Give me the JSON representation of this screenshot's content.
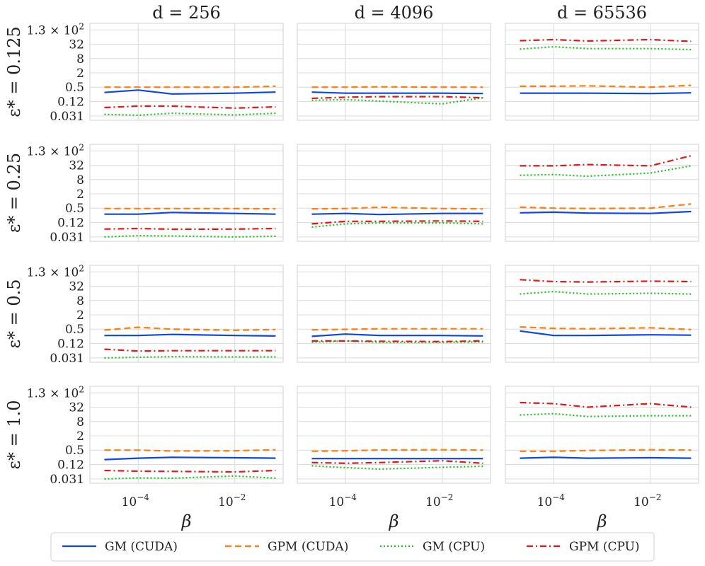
{
  "chart_data": {
    "type": "line",
    "layout": "grid 4 rows x 3 columns",
    "xscale": "log",
    "yscale": "log",
    "xlabel": "β",
    "xlim": [
      1e-05,
      0.1
    ],
    "ylim": [
      0.025,
      160
    ],
    "x": [
      2e-05,
      0.0001,
      0.0005,
      0.01,
      0.07
    ],
    "xticks": [
      {
        "value": 0.0001,
        "base": "10",
        "exp": "−4"
      },
      {
        "value": 0.01,
        "base": "10",
        "exp": "−2"
      }
    ],
    "yticks": [
      {
        "value": 128,
        "label": "1.3 × 10",
        "exp": "2"
      },
      {
        "value": 32,
        "label": "32"
      },
      {
        "value": 8,
        "label": "8"
      },
      {
        "value": 2,
        "label": "2"
      },
      {
        "value": 0.5,
        "label": "0.5"
      },
      {
        "value": 0.125,
        "label": "0.12"
      },
      {
        "value": 0.031,
        "label": "0.031"
      }
    ],
    "columns": [
      {
        "label": "d = 256"
      },
      {
        "label": "d = 4096"
      },
      {
        "label": "d = 65536"
      }
    ],
    "rows": [
      {
        "label": "ε* = 0.125"
      },
      {
        "label": "ε* = 0.25"
      },
      {
        "label": "ε* = 0.5"
      },
      {
        "label": "ε* = 1.0"
      }
    ],
    "series_styles": [
      {
        "name": "GM (CUDA)",
        "color": "#0d45e8",
        "dash": ""
      },
      {
        "name": "GPM (CUDA)",
        "color": "#ff7f0e",
        "dash": "9,5"
      },
      {
        "name": "GM (CPU)",
        "color": "#1bc41b",
        "dash": "2,3"
      },
      {
        "name": "GPM (CPU)",
        "color": "#dc1a1a",
        "dash": "9,4,2,4"
      }
    ],
    "panels": [
      {
        "row": 0,
        "col": 0,
        "series": [
          {
            "name": "GM (CUDA)",
            "values": [
              0.3,
              0.38,
              0.26,
              0.28,
              0.31
            ]
          },
          {
            "name": "GPM (CUDA)",
            "values": [
              0.5,
              0.5,
              0.5,
              0.5,
              0.55
            ]
          },
          {
            "name": "GM (CPU)",
            "values": [
              0.036,
              0.033,
              0.04,
              0.034,
              0.04
            ]
          },
          {
            "name": "GPM (CPU)",
            "values": [
              0.07,
              0.08,
              0.08,
              0.066,
              0.075
            ]
          }
        ]
      },
      {
        "row": 0,
        "col": 1,
        "series": [
          {
            "name": "GM (CUDA)",
            "values": [
              0.31,
              0.28,
              0.28,
              0.28,
              0.27
            ]
          },
          {
            "name": "GPM (CUDA)",
            "values": [
              0.5,
              0.5,
              0.52,
              0.5,
              0.5
            ]
          },
          {
            "name": "GM (CPU)",
            "values": [
              0.14,
              0.15,
              0.13,
              0.1,
              0.18
            ]
          },
          {
            "name": "GPM (CPU)",
            "values": [
              0.17,
              0.19,
              0.2,
              0.2,
              0.18
            ]
          }
        ]
      },
      {
        "row": 0,
        "col": 2,
        "series": [
          {
            "name": "GM (CUDA)",
            "values": [
              0.28,
              0.28,
              0.28,
              0.27,
              0.29
            ]
          },
          {
            "name": "GPM (CUDA)",
            "values": [
              0.55,
              0.55,
              0.57,
              0.5,
              0.6
            ]
          },
          {
            "name": "GM (CPU)",
            "values": [
              20,
              25,
              21,
              21,
              19
            ]
          },
          {
            "name": "GPM (CPU)",
            "values": [
              45,
              50,
              44,
              50,
              42
            ]
          }
        ]
      },
      {
        "row": 1,
        "col": 0,
        "series": [
          {
            "name": "GM (CUDA)",
            "values": [
              0.28,
              0.28,
              0.33,
              0.3,
              0.28
            ]
          },
          {
            "name": "GPM (CUDA)",
            "values": [
              0.48,
              0.48,
              0.48,
              0.48,
              0.47
            ]
          },
          {
            "name": "GM (CPU)",
            "values": [
              0.031,
              0.035,
              0.034,
              0.031,
              0.033
            ]
          },
          {
            "name": "GPM (CPU)",
            "values": [
              0.066,
              0.07,
              0.065,
              0.066,
              0.07
            ]
          }
        ]
      },
      {
        "row": 1,
        "col": 1,
        "series": [
          {
            "name": "GM (CUDA)",
            "values": [
              0.28,
              0.3,
              0.27,
              0.3,
              0.3
            ]
          },
          {
            "name": "GPM (CUDA)",
            "values": [
              0.47,
              0.48,
              0.55,
              0.48,
              0.47
            ]
          },
          {
            "name": "GM (CPU)",
            "values": [
              0.08,
              0.11,
              0.12,
              0.12,
              0.11
            ]
          },
          {
            "name": "GPM (CPU)",
            "values": [
              0.11,
              0.14,
              0.14,
              0.145,
              0.14
            ]
          }
        ]
      },
      {
        "row": 1,
        "col": 2,
        "series": [
          {
            "name": "GM (CUDA)",
            "values": [
              0.32,
              0.34,
              0.31,
              0.3,
              0.36
            ]
          },
          {
            "name": "GPM (CUDA)",
            "values": [
              0.55,
              0.5,
              0.48,
              0.5,
              0.75
            ]
          },
          {
            "name": "GM (CPU)",
            "values": [
              12,
              13,
              11,
              15,
              30
            ]
          },
          {
            "name": "GPM (CPU)",
            "values": [
              30,
              30,
              34,
              30,
              80
            ]
          }
        ]
      },
      {
        "row": 2,
        "col": 0,
        "series": [
          {
            "name": "GM (CUDA)",
            "values": [
              0.27,
              0.27,
              0.3,
              0.27,
              0.26
            ]
          },
          {
            "name": "GPM (CUDA)",
            "values": [
              0.46,
              0.6,
              0.5,
              0.45,
              0.48
            ]
          },
          {
            "name": "GM (CPU)",
            "values": [
              0.031,
              0.033,
              0.035,
              0.034,
              0.034
            ]
          },
          {
            "name": "GPM (CPU)",
            "values": [
              0.072,
              0.06,
              0.062,
              0.062,
              0.062
            ]
          }
        ]
      },
      {
        "row": 2,
        "col": 1,
        "series": [
          {
            "name": "GM (CUDA)",
            "values": [
              0.25,
              0.31,
              0.27,
              0.27,
              0.26
            ]
          },
          {
            "name": "GPM (CUDA)",
            "values": [
              0.47,
              0.49,
              0.52,
              0.52,
              0.52
            ]
          },
          {
            "name": "GM (CPU)",
            "values": [
              0.14,
              0.16,
              0.14,
              0.14,
              0.145
            ]
          },
          {
            "name": "GPM (CPU)",
            "values": [
              0.16,
              0.16,
              0.155,
              0.15,
              0.16
            ]
          }
        ]
      },
      {
        "row": 2,
        "col": 2,
        "series": [
          {
            "name": "GM (CUDA)",
            "values": [
              0.42,
              0.27,
              0.27,
              0.29,
              0.28
            ]
          },
          {
            "name": "GPM (CUDA)",
            "values": [
              0.62,
              0.54,
              0.52,
              0.57,
              0.48
            ]
          },
          {
            "name": "GM (CPU)",
            "values": [
              15,
              19,
              15,
              16,
              15
            ]
          },
          {
            "name": "GPM (CPU)",
            "values": [
              60,
              50,
              48,
              52,
              50
            ]
          }
        ]
      },
      {
        "row": 3,
        "col": 0,
        "series": [
          {
            "name": "GM (CUDA)",
            "values": [
              0.2,
              0.23,
              0.25,
              0.24,
              0.23
            ]
          },
          {
            "name": "GPM (CUDA)",
            "values": [
              0.5,
              0.5,
              0.46,
              0.47,
              0.52
            ]
          },
          {
            "name": "GM (CPU)",
            "values": [
              0.031,
              0.034,
              0.033,
              0.041,
              0.033
            ]
          },
          {
            "name": "GPM (CPU)",
            "values": [
              0.07,
              0.065,
              0.064,
              0.061,
              0.07
            ]
          }
        ]
      },
      {
        "row": 3,
        "col": 1,
        "series": [
          {
            "name": "GM (CUDA)",
            "values": [
              0.22,
              0.22,
              0.22,
              0.22,
              0.22
            ]
          },
          {
            "name": "GPM (CUDA)",
            "values": [
              0.45,
              0.47,
              0.51,
              0.52,
              0.5
            ]
          },
          {
            "name": "GM (CPU)",
            "values": [
              0.11,
              0.092,
              0.08,
              0.095,
              0.105
            ]
          },
          {
            "name": "GPM (CPU)",
            "values": [
              0.15,
              0.14,
              0.15,
              0.18,
              0.14
            ]
          }
        ]
      },
      {
        "row": 3,
        "col": 2,
        "series": [
          {
            "name": "GM (CUDA)",
            "values": [
              0.23,
              0.25,
              0.23,
              0.24,
              0.23
            ]
          },
          {
            "name": "GPM (CUDA)",
            "values": [
              0.45,
              0.45,
              0.48,
              0.52,
              0.5
            ]
          },
          {
            "name": "GM (CPU)",
            "values": [
              15,
              17,
              13,
              14,
              14
            ]
          },
          {
            "name": "GPM (CPU)",
            "values": [
              50,
              45,
              32,
              45,
              32
            ]
          }
        ]
      }
    ]
  }
}
